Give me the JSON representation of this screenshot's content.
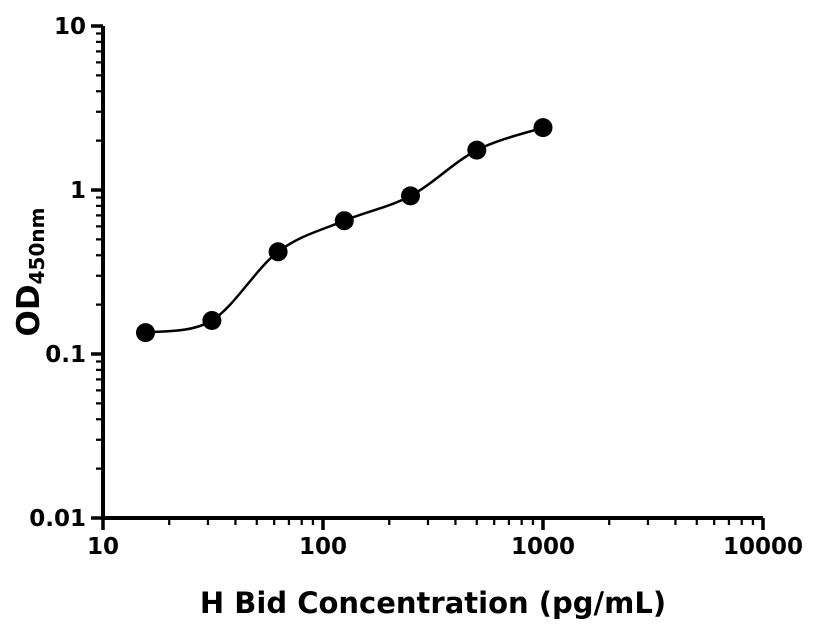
{
  "chart_data": {
    "type": "scatter",
    "title": "",
    "xlabel": "H Bid Concentration (pg/mL)",
    "ylabel_main": "OD",
    "ylabel_sub": "450nm",
    "x_scale": "log",
    "y_scale": "log",
    "xlim": [
      10,
      10000
    ],
    "ylim": [
      0.01,
      10
    ],
    "x_ticks": [
      10,
      100,
      1000,
      10000
    ],
    "x_tick_labels": [
      "10",
      "100",
      "1000",
      "10000"
    ],
    "y_ticks": [
      0.01,
      0.1,
      1,
      10
    ],
    "y_tick_labels": [
      "0.01",
      "0.1",
      "1",
      "10"
    ],
    "grid": false,
    "legend": false,
    "curve_style": "smooth fit through points (standard-curve fit)",
    "points": [
      {
        "x": 15.6,
        "y": 0.135
      },
      {
        "x": 31.25,
        "y": 0.16
      },
      {
        "x": 62.5,
        "y": 0.42
      },
      {
        "x": 125,
        "y": 0.65
      },
      {
        "x": 250,
        "y": 0.92
      },
      {
        "x": 500,
        "y": 1.75
      },
      {
        "x": 1000,
        "y": 2.4
      }
    ],
    "colors": {
      "axis": "#000000",
      "marker": "#000000",
      "line": "#000000",
      "background": "#ffffff"
    }
  }
}
